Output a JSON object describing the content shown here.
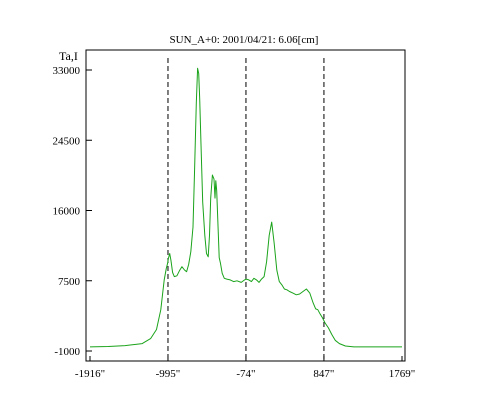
{
  "chart_data": {
    "type": "line",
    "title": "SUN_A+0: 2001/04/21: 6.06[cm]",
    "ylabel": "Ta,I",
    "xlabel": "",
    "x_ticks": [
      {
        "value": -1916,
        "label": "-1916\""
      },
      {
        "value": -995,
        "label": "-995\""
      },
      {
        "value": -74,
        "label": "-74\""
      },
      {
        "value": 847,
        "label": "847\""
      },
      {
        "value": 1769,
        "label": "1769\""
      }
    ],
    "y_ticks": [
      {
        "value": -1000,
        "label": "-1000"
      },
      {
        "value": 7500,
        "label": "7500"
      },
      {
        "value": 16000,
        "label": "16000"
      },
      {
        "value": 24500,
        "label": "24500"
      },
      {
        "value": 33000,
        "label": "33000"
      }
    ],
    "xlim": [
      -1916,
      1769
    ],
    "ylim": [
      -1000,
      33000
    ],
    "grid": false,
    "vlines_dashed": [
      -995,
      -74,
      847
    ],
    "series": [
      {
        "color": "#1aa31a",
        "x": [
          -1916,
          -1700,
          -1500,
          -1300,
          -1200,
          -1130,
          -1080,
          -1040,
          -1015,
          -1000,
          -990,
          -975,
          -960,
          -940,
          -920,
          -890,
          -860,
          -830,
          -800,
          -775,
          -750,
          -725,
          -700,
          -680,
          -660,
          -645,
          -632,
          -620,
          -605,
          -585,
          -560,
          -540,
          -520,
          -505,
          -490,
          -470,
          -452,
          -440,
          -430,
          -420,
          -405,
          -390,
          -375,
          -355,
          -330,
          -300,
          -260,
          -220,
          -180,
          -130,
          -90,
          -74,
          -40,
          -10,
          20,
          50,
          80,
          110,
          140,
          170,
          200,
          230,
          260,
          290,
          320,
          350,
          380,
          410,
          440,
          480,
          520,
          560,
          600,
          640,
          680,
          720,
          750,
          775,
          800,
          830,
          860,
          900,
          940,
          980,
          1030,
          1100,
          1200,
          1300,
          1450,
          1600,
          1769
        ],
        "y": [
          -500,
          -450,
          -350,
          -100,
          500,
          1600,
          4000,
          7600,
          9000,
          9600,
          10200,
          10800,
          10000,
          8500,
          8000,
          8100,
          8700,
          9200,
          8800,
          8600,
          9500,
          11000,
          14000,
          21000,
          29000,
          33200,
          32600,
          29500,
          24000,
          17000,
          13000,
          10800,
          10400,
          13000,
          17500,
          20300,
          19800,
          17500,
          19600,
          18400,
          14500,
          10300,
          9600,
          8400,
          7800,
          7700,
          7600,
          7400,
          7500,
          7300,
          7600,
          7700,
          7600,
          7400,
          7800,
          7600,
          7300,
          7700,
          8000,
          9800,
          13000,
          14600,
          12000,
          8800,
          7400,
          7000,
          6500,
          6400,
          6200,
          6000,
          5800,
          5900,
          6200,
          6500,
          6000,
          4800,
          4100,
          4000,
          3500,
          3000,
          2400,
          1800,
          1000,
          300,
          -100,
          -400,
          -500,
          -500,
          -500,
          -500,
          -500
        ]
      }
    ]
  }
}
